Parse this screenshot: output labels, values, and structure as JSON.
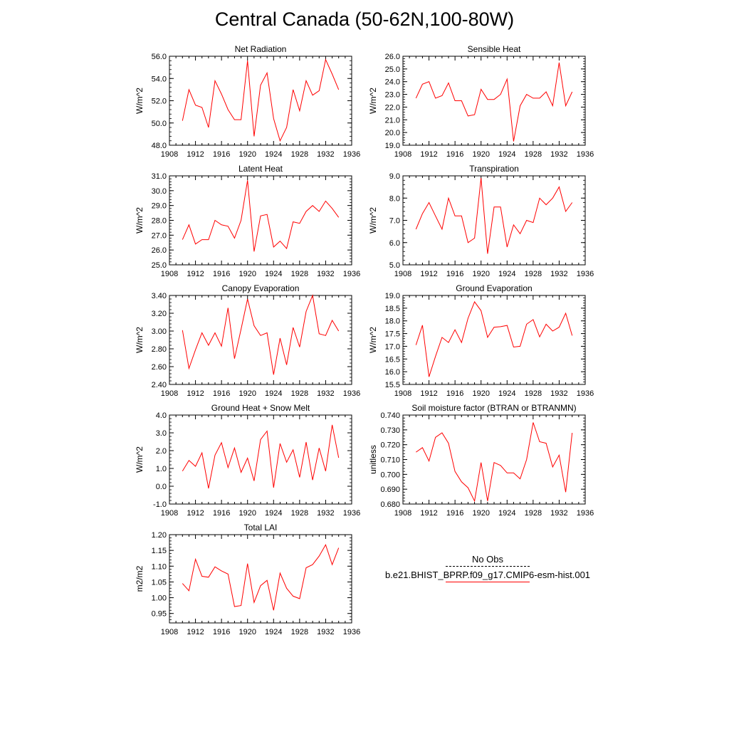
{
  "title": "Central Canada (50-62N,100-80W)",
  "legend": {
    "obs_label": "No Obs",
    "model_label": "b.e21.BHIST_BPRP.f09_g17.CMIP6-esm-hist.001",
    "model_color": "#ff0000",
    "obs_color": "#000000"
  },
  "chart_data": [
    {
      "type": "line",
      "title": "Net Radiation",
      "ylabel": "W/m^2",
      "ylim": [
        48.0,
        56.0
      ],
      "yticks": [
        48.0,
        50.0,
        52.0,
        54.0,
        56.0
      ],
      "ydecimals": 1,
      "xlim": [
        1908,
        1936
      ],
      "xticks": [
        1908,
        1912,
        1916,
        1920,
        1924,
        1928,
        1932,
        1936
      ],
      "series": [
        {
          "color": "#ff0000",
          "x": [
            1910,
            1911,
            1912,
            1913,
            1914,
            1915,
            1916,
            1917,
            1918,
            1919,
            1920,
            1921,
            1922,
            1923,
            1924,
            1925,
            1926,
            1927,
            1928,
            1929,
            1930,
            1931,
            1932,
            1933,
            1934
          ],
          "values": [
            50.2,
            53.0,
            51.6,
            51.4,
            49.6,
            53.8,
            52.6,
            51.2,
            50.3,
            50.3,
            55.6,
            48.8,
            53.4,
            54.5,
            50.4,
            48.4,
            49.6,
            53.0,
            51.1,
            53.8,
            52.5,
            52.9,
            55.7,
            54.4,
            53.0
          ]
        }
      ]
    },
    {
      "type": "line",
      "title": "Sensible Heat",
      "ylabel": "W/m^2",
      "ylim": [
        19.0,
        26.0
      ],
      "yticks": [
        19.0,
        20.0,
        21.0,
        22.0,
        23.0,
        24.0,
        25.0,
        26.0
      ],
      "ydecimals": 1,
      "xlim": [
        1908,
        1936
      ],
      "xticks": [
        1908,
        1912,
        1916,
        1920,
        1924,
        1928,
        1932,
        1936
      ],
      "series": [
        {
          "color": "#ff0000",
          "x": [
            1910,
            1911,
            1912,
            1913,
            1914,
            1915,
            1916,
            1917,
            1918,
            1919,
            1920,
            1921,
            1922,
            1923,
            1924,
            1925,
            1926,
            1927,
            1928,
            1929,
            1930,
            1931,
            1932,
            1933,
            1934
          ],
          "values": [
            22.7,
            23.8,
            24.0,
            22.7,
            22.9,
            23.9,
            22.5,
            22.5,
            21.3,
            21.4,
            23.4,
            22.6,
            22.6,
            23.0,
            24.2,
            19.3,
            22.1,
            23.0,
            22.7,
            22.7,
            23.2,
            22.1,
            25.5,
            22.1,
            23.2
          ]
        }
      ]
    },
    {
      "type": "line",
      "title": "Latent Heat",
      "ylabel": "W/m^2",
      "ylim": [
        25.0,
        31.0
      ],
      "yticks": [
        25.0,
        26.0,
        27.0,
        28.0,
        29.0,
        30.0,
        31.0
      ],
      "ydecimals": 1,
      "xlim": [
        1908,
        1936
      ],
      "xticks": [
        1908,
        1912,
        1916,
        1920,
        1924,
        1928,
        1932,
        1936
      ],
      "series": [
        {
          "color": "#ff0000",
          "x": [
            1910,
            1911,
            1912,
            1913,
            1914,
            1915,
            1916,
            1917,
            1918,
            1919,
            1920,
            1921,
            1922,
            1923,
            1924,
            1925,
            1926,
            1927,
            1928,
            1929,
            1930,
            1931,
            1932,
            1933,
            1934
          ],
          "values": [
            26.7,
            27.7,
            26.4,
            26.7,
            26.7,
            28.0,
            27.7,
            27.6,
            26.8,
            28.0,
            30.7,
            25.9,
            28.3,
            28.4,
            26.2,
            26.6,
            26.1,
            27.9,
            27.8,
            28.6,
            29.0,
            28.6,
            29.3,
            28.8,
            28.2
          ]
        }
      ]
    },
    {
      "type": "line",
      "title": "Transpiration",
      "ylabel": "W/m^2",
      "ylim": [
        5.0,
        9.0
      ],
      "yticks": [
        5.0,
        6.0,
        7.0,
        8.0,
        9.0
      ],
      "ydecimals": 1,
      "xlim": [
        1908,
        1936
      ],
      "xticks": [
        1908,
        1912,
        1916,
        1920,
        1924,
        1928,
        1932,
        1936
      ],
      "series": [
        {
          "color": "#ff0000",
          "x": [
            1910,
            1911,
            1912,
            1913,
            1914,
            1915,
            1916,
            1917,
            1918,
            1919,
            1920,
            1921,
            1922,
            1923,
            1924,
            1925,
            1926,
            1927,
            1928,
            1929,
            1930,
            1931,
            1932,
            1933,
            1934
          ],
          "values": [
            6.6,
            7.3,
            7.8,
            7.2,
            6.6,
            8.0,
            7.2,
            7.2,
            6.0,
            6.2,
            8.9,
            5.5,
            7.6,
            7.6,
            5.8,
            6.8,
            6.4,
            7.0,
            6.9,
            8.0,
            7.7,
            8.0,
            8.5,
            7.4,
            7.8
          ]
        }
      ]
    },
    {
      "type": "line",
      "title": "Canopy Evaporation",
      "ylabel": "W/m^2",
      "ylim": [
        2.4,
        3.4
      ],
      "yticks": [
        2.4,
        2.6,
        2.8,
        3.0,
        3.2,
        3.4
      ],
      "ydecimals": 2,
      "xlim": [
        1908,
        1936
      ],
      "xticks": [
        1908,
        1912,
        1916,
        1920,
        1924,
        1928,
        1932,
        1936
      ],
      "series": [
        {
          "color": "#ff0000",
          "x": [
            1910,
            1911,
            1912,
            1913,
            1914,
            1915,
            1916,
            1917,
            1918,
            1919,
            1920,
            1921,
            1922,
            1923,
            1924,
            1925,
            1926,
            1927,
            1928,
            1929,
            1930,
            1931,
            1932,
            1933,
            1934
          ],
          "values": [
            3.01,
            2.58,
            2.79,
            2.98,
            2.84,
            2.98,
            2.83,
            3.26,
            2.69,
            3.02,
            3.36,
            3.06,
            2.95,
            2.98,
            2.51,
            2.92,
            2.62,
            3.04,
            2.82,
            3.22,
            3.4,
            2.97,
            2.95,
            3.12,
            3.0
          ]
        }
      ]
    },
    {
      "type": "line",
      "title": "Ground Evaporation",
      "ylabel": "W/m^2",
      "ylim": [
        15.5,
        19.0
      ],
      "yticks": [
        15.5,
        16.0,
        16.5,
        17.0,
        17.5,
        18.0,
        18.5,
        19.0
      ],
      "ydecimals": 1,
      "xlim": [
        1908,
        1936
      ],
      "xticks": [
        1908,
        1912,
        1916,
        1920,
        1924,
        1928,
        1932,
        1936
      ],
      "series": [
        {
          "color": "#ff0000",
          "x": [
            1910,
            1911,
            1912,
            1913,
            1914,
            1915,
            1916,
            1917,
            1918,
            1919,
            1920,
            1921,
            1922,
            1923,
            1924,
            1925,
            1926,
            1927,
            1928,
            1929,
            1930,
            1931,
            1932,
            1933,
            1934
          ],
          "values": [
            17.05,
            17.83,
            15.8,
            16.6,
            17.35,
            17.15,
            17.65,
            17.15,
            18.1,
            18.75,
            18.4,
            17.35,
            17.75,
            17.77,
            17.82,
            16.97,
            17.0,
            17.87,
            18.05,
            17.37,
            17.87,
            17.6,
            17.75,
            18.3,
            17.42
          ]
        }
      ]
    },
    {
      "type": "line",
      "title": "Ground Heat + Snow Melt",
      "ylabel": "W/m^2",
      "ylim": [
        -1.0,
        4.0
      ],
      "yticks": [
        -1.0,
        0.0,
        1.0,
        2.0,
        3.0,
        4.0
      ],
      "ydecimals": 1,
      "xlim": [
        1908,
        1936
      ],
      "xticks": [
        1908,
        1912,
        1916,
        1920,
        1924,
        1928,
        1932,
        1936
      ],
      "series": [
        {
          "color": "#ff0000",
          "x": [
            1910,
            1911,
            1912,
            1913,
            1914,
            1915,
            1916,
            1917,
            1918,
            1919,
            1920,
            1921,
            1922,
            1923,
            1924,
            1925,
            1926,
            1927,
            1928,
            1929,
            1930,
            1931,
            1932,
            1933,
            1934
          ],
          "values": [
            0.85,
            1.45,
            1.12,
            1.88,
            -0.12,
            1.75,
            2.45,
            1.05,
            2.15,
            0.78,
            1.58,
            0.3,
            2.62,
            3.1,
            -0.08,
            2.4,
            1.35,
            2.05,
            0.5,
            2.48,
            0.35,
            2.15,
            0.85,
            3.45,
            1.6
          ]
        }
      ]
    },
    {
      "type": "line",
      "title": "Soil moisture factor (BTRAN or BTRANMN)",
      "ylabel": "unitless",
      "ylim": [
        0.68,
        0.74
      ],
      "yticks": [
        0.68,
        0.69,
        0.7,
        0.71,
        0.72,
        0.73,
        0.74
      ],
      "ydecimals": 3,
      "xlim": [
        1908,
        1936
      ],
      "xticks": [
        1908,
        1912,
        1916,
        1920,
        1924,
        1928,
        1932,
        1936
      ],
      "series": [
        {
          "color": "#ff0000",
          "x": [
            1910,
            1911,
            1912,
            1913,
            1914,
            1915,
            1916,
            1917,
            1918,
            1919,
            1920,
            1921,
            1922,
            1923,
            1924,
            1925,
            1926,
            1927,
            1928,
            1929,
            1930,
            1931,
            1932,
            1933,
            1934
          ],
          "values": [
            0.715,
            0.718,
            0.709,
            0.725,
            0.728,
            0.721,
            0.702,
            0.695,
            0.691,
            0.682,
            0.708,
            0.682,
            0.708,
            0.706,
            0.701,
            0.701,
            0.697,
            0.71,
            0.735,
            0.722,
            0.721,
            0.705,
            0.713,
            0.688,
            0.728
          ]
        }
      ]
    },
    {
      "type": "line",
      "title": "Total LAI",
      "ylabel": "m2/m2",
      "ylim": [
        0.92,
        1.2
      ],
      "yticks": [
        0.95,
        1.0,
        1.05,
        1.1,
        1.15,
        1.2
      ],
      "ydecimals": 2,
      "xlim": [
        1908,
        1936
      ],
      "xticks": [
        1908,
        1912,
        1916,
        1920,
        1924,
        1928,
        1932,
        1936
      ],
      "series": [
        {
          "color": "#ff0000",
          "x": [
            1910,
            1911,
            1912,
            1913,
            1914,
            1915,
            1916,
            1917,
            1918,
            1919,
            1920,
            1921,
            1922,
            1923,
            1924,
            1925,
            1926,
            1927,
            1928,
            1929,
            1930,
            1931,
            1932,
            1933,
            1934
          ],
          "values": [
            1.045,
            1.022,
            1.122,
            1.068,
            1.065,
            1.098,
            1.085,
            1.075,
            0.972,
            0.975,
            1.108,
            0.985,
            1.038,
            1.055,
            0.96,
            1.078,
            1.03,
            1.005,
            0.997,
            1.095,
            1.105,
            1.132,
            1.168,
            1.105,
            1.158
          ]
        }
      ]
    }
  ]
}
